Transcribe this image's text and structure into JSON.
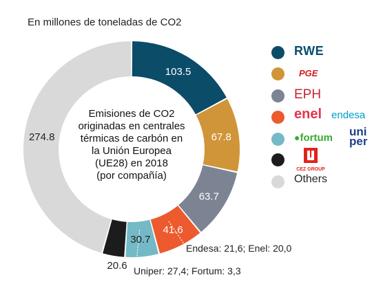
{
  "subtitle": "En millones de toneladas de CO2",
  "center_lines": [
    "Emisiones de CO2",
    "originadas en centrales",
    "térmicas de carbón en",
    "la Unión Europea",
    "(UE28) en 2018",
    "(por compañía)"
  ],
  "notes": {
    "enel_endesa": "Endesa: 21,6; Enel: 20,0",
    "uniper_fortum": "Uniper: 27,4; Fortum: 3,3"
  },
  "legend": {
    "rwe": "RWE",
    "pge": "PGE",
    "eph": "EPH",
    "enel": "enel",
    "endesa": "endesa",
    "fortum": "fortum",
    "uniper_line1": "uni",
    "uniper_line2": "per",
    "cez": "CEZ GROUP",
    "others": "Others"
  },
  "chart_data": {
    "type": "pie",
    "donut": true,
    "categories": [
      "RWE",
      "PGE",
      "EPH",
      "enel / endesa",
      "fortum / uniper",
      "CEZ GROUP",
      "Others"
    ],
    "values": [
      103.5,
      67.8,
      63.7,
      41.6,
      30.7,
      20.6,
      274.8
    ],
    "labels": [
      "103.5",
      "67.8",
      "63.7",
      "41.6",
      "30.7",
      "20.6",
      "274.8"
    ],
    "colors": [
      "#0b4c68",
      "#d09538",
      "#7c8494",
      "#ec5a2e",
      "#74b9c6",
      "#1c1c1c",
      "#d9d9d9"
    ],
    "label_colors": [
      "#ffffff",
      "#ffffff",
      "#ffffff",
      "#ffffff",
      "#222222",
      "#222222",
      "#222222"
    ],
    "start": "12 o'clock",
    "direction": "clockwise"
  }
}
